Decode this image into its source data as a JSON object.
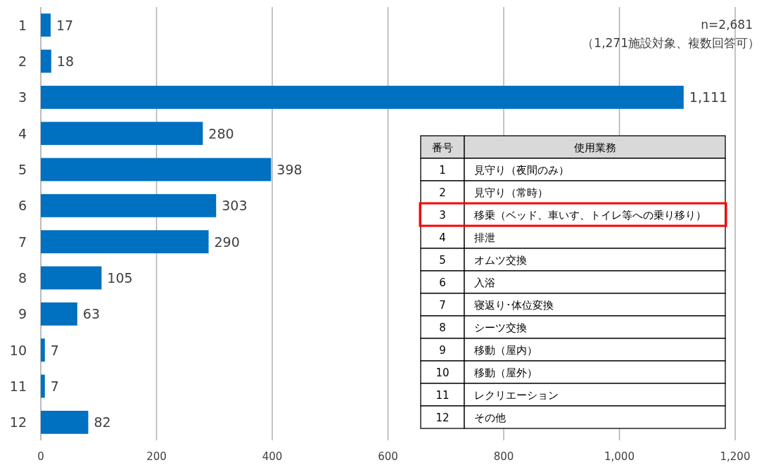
{
  "chart_data": {
    "type": "bar",
    "orientation": "horizontal",
    "categories": [
      "1",
      "2",
      "3",
      "4",
      "5",
      "6",
      "7",
      "8",
      "9",
      "10",
      "11",
      "12"
    ],
    "values": [
      17,
      18,
      1111,
      280,
      398,
      303,
      290,
      105,
      63,
      7,
      7,
      82
    ],
    "value_labels": [
      "17",
      "18",
      "1,111",
      "280",
      "398",
      "303",
      "290",
      "105",
      "63",
      "7",
      "7",
      "82"
    ],
    "color": "#0070c0",
    "xlim": [
      0,
      1200
    ],
    "xticks": [
      0,
      200,
      400,
      600,
      800,
      {
        "value": 1000,
        "label": "1,000"
      },
      {
        "value": 1200,
        "label": "1,200"
      }
    ],
    "grid": "x",
    "annotations": [
      "n=2,681",
      "（1,271施設対象、複数回答可）",
      "番号",
      "使用業務",
      "見守り（夜間のみ）",
      "見守り（常時）",
      "移乗（ベッド、車いす、トイレ等への乗り移り）",
      "排泄",
      "オムツ交換",
      "入浴",
      "寝返り･体位変換",
      "シーツ交換",
      "移動（屋内）",
      "移動（屋外）",
      "レクリエーション",
      "その他"
    ]
  }
}
